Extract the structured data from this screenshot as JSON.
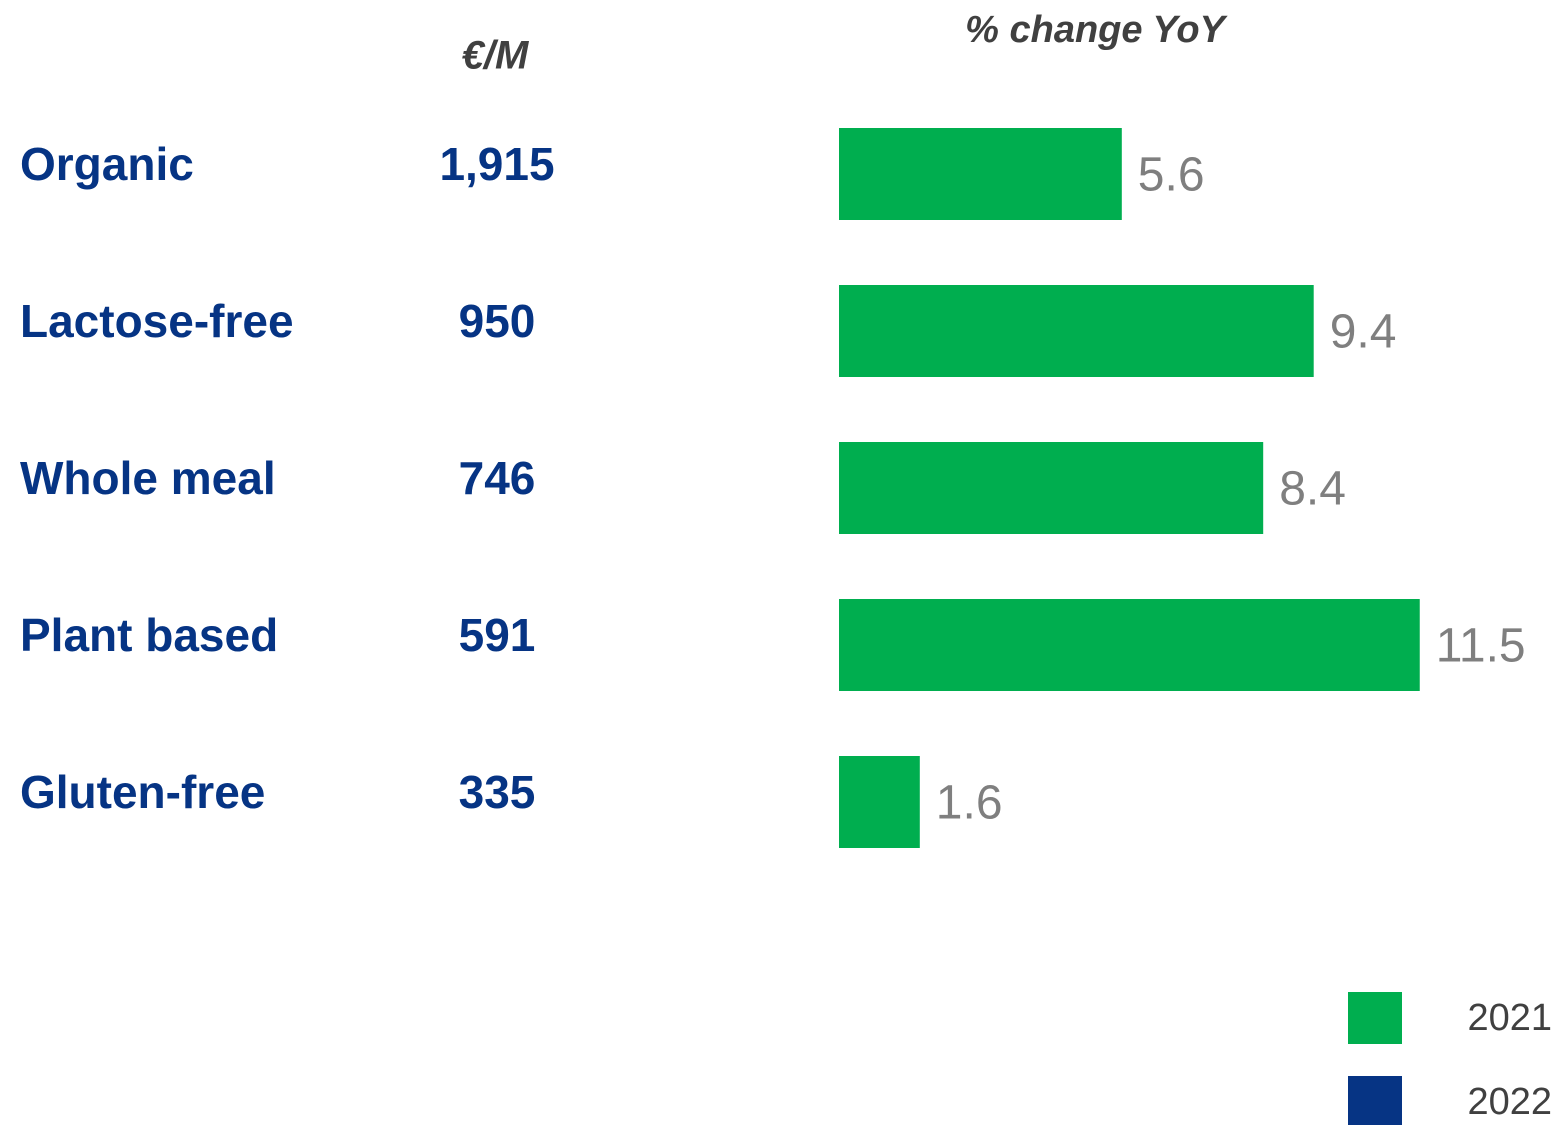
{
  "chart_data": {
    "type": "bar",
    "orientation": "horizontal",
    "xlabel": "% change YoY",
    "categories": [
      "Organic",
      "Lactose-free",
      "Whole meal",
      "Plant based",
      "Gluten-free"
    ],
    "amounts": {
      "label": "€/M",
      "values": [
        "1,915",
        "950",
        "746",
        "591",
        "335"
      ]
    },
    "series": [
      {
        "name": "2021",
        "color": "#00ae4f",
        "values": [
          5.6,
          9.4,
          8.4,
          11.5,
          1.6
        ]
      },
      {
        "name": "2022",
        "color": "#063484",
        "values": [
          null,
          null,
          null,
          null,
          null
        ]
      }
    ],
    "xlim": [
      0,
      12
    ],
    "grid": false,
    "legend": "bottom-right"
  }
}
